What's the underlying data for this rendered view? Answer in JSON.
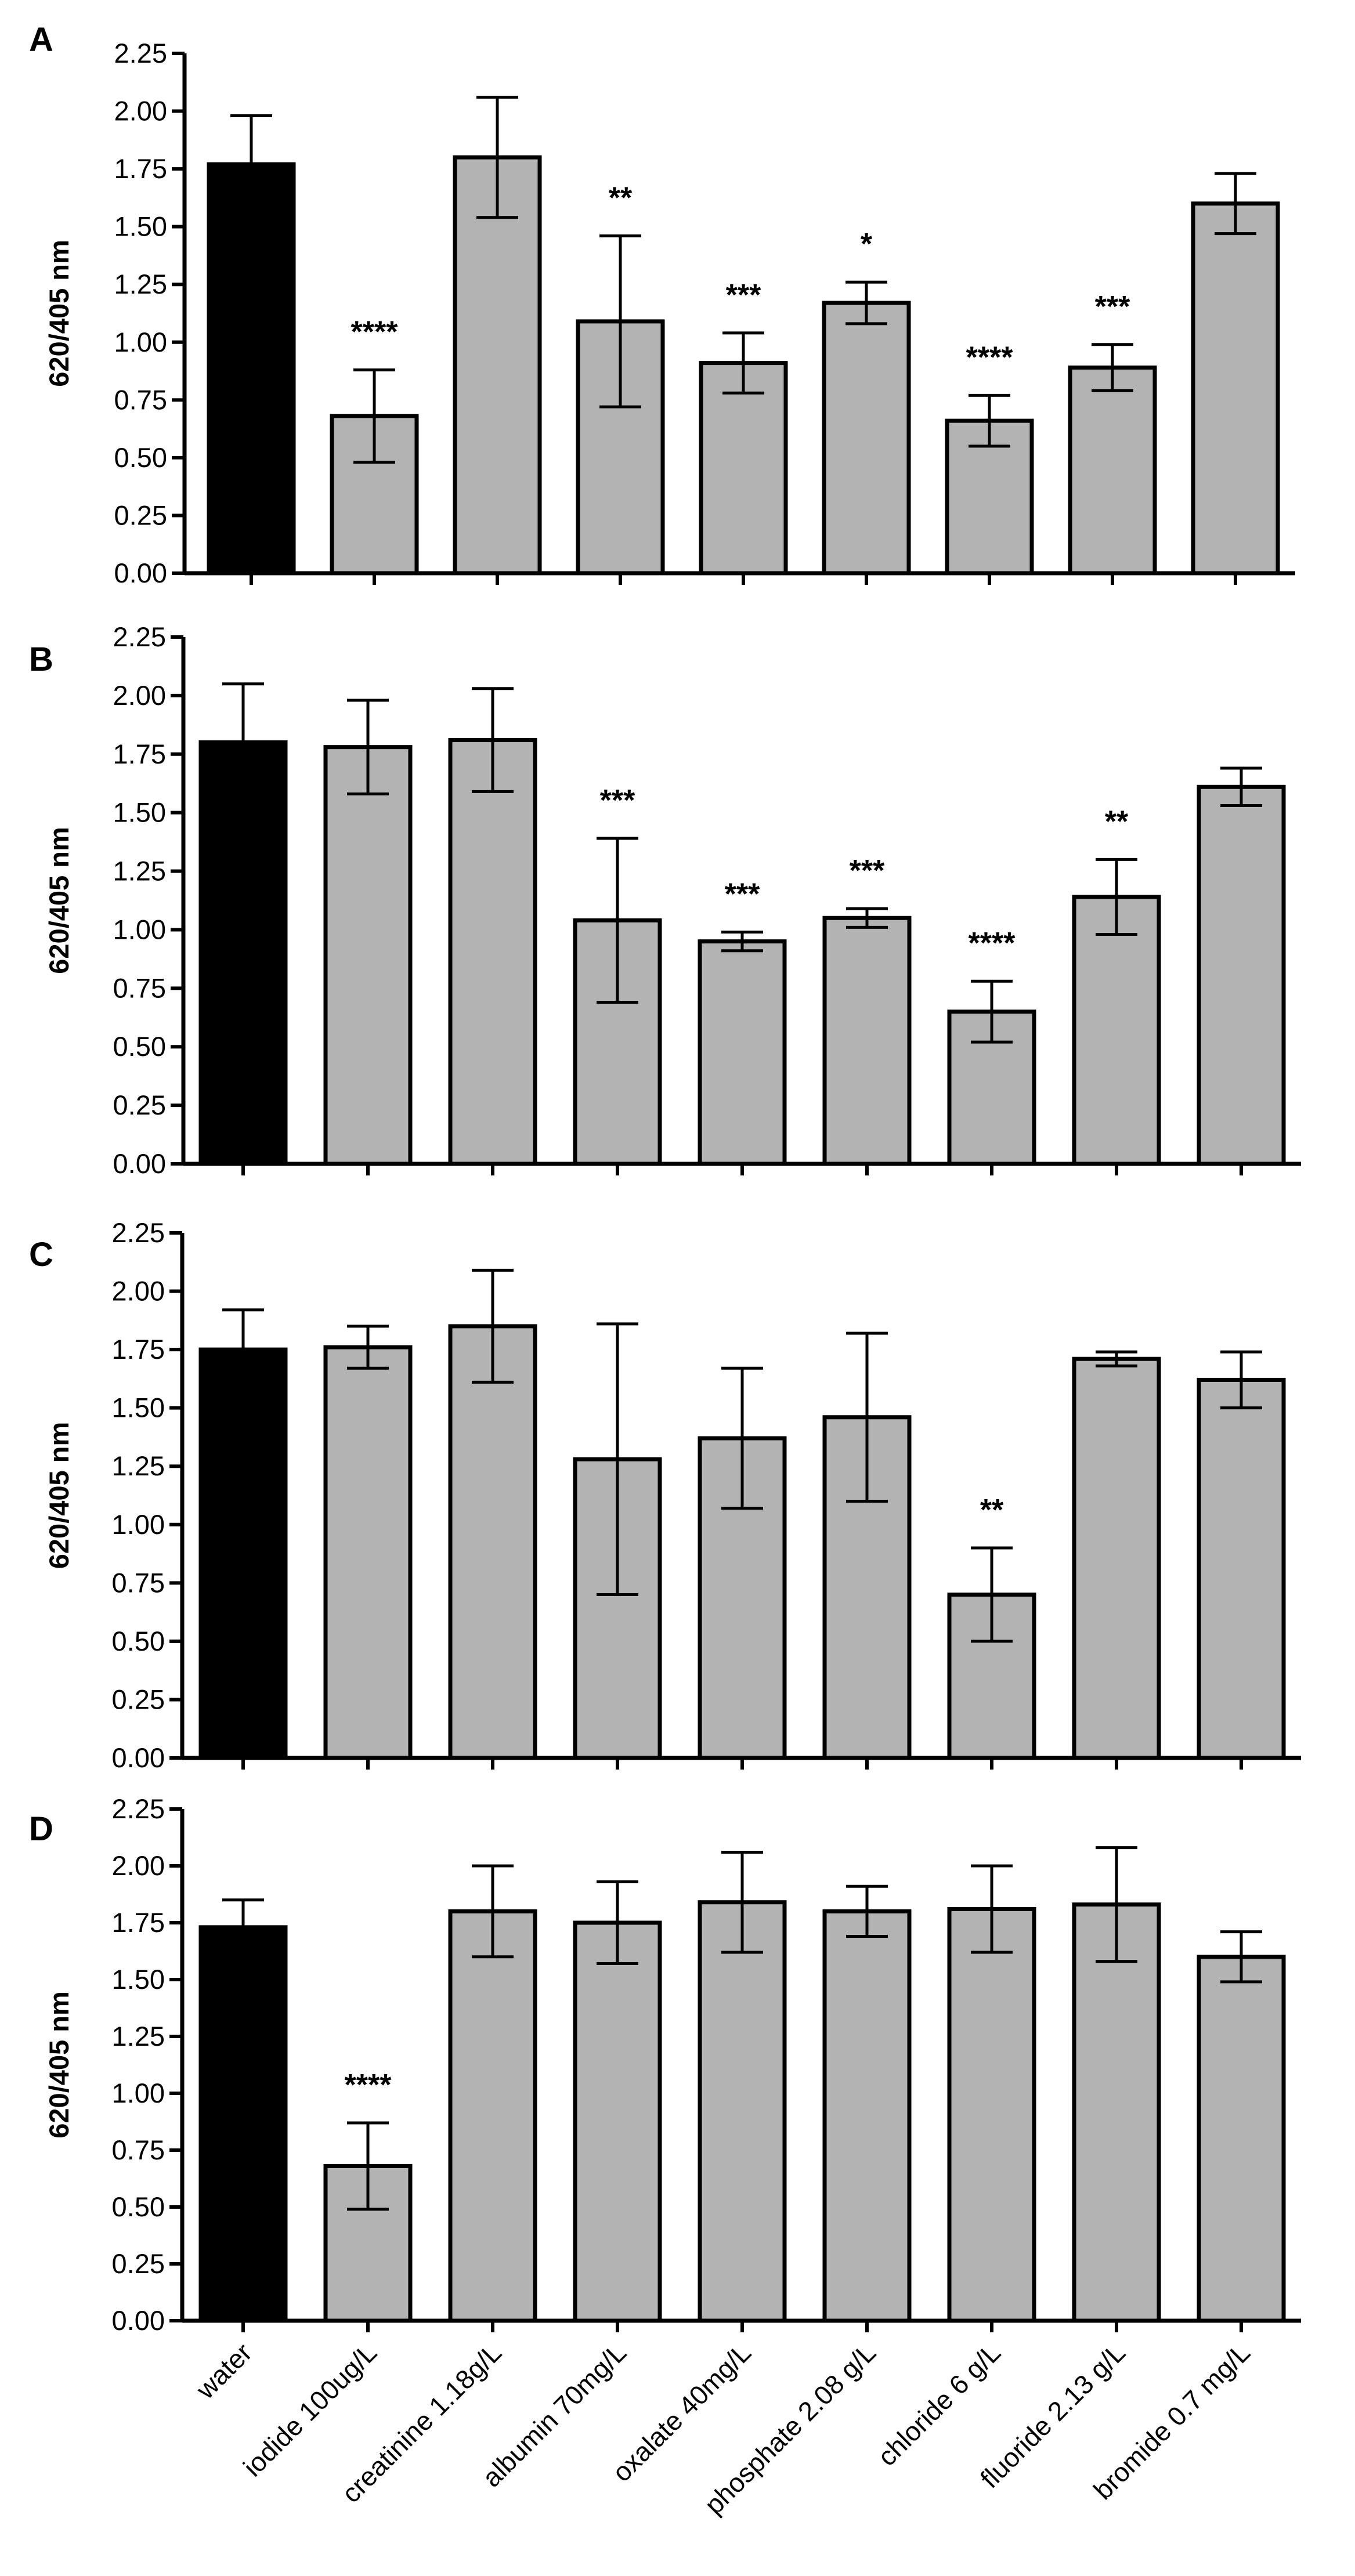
{
  "chart_data": [
    {
      "type": "bar",
      "panel": "A",
      "ylabel": "620/405 nm",
      "ylim": [
        0,
        2.25
      ],
      "yticks": [
        "0.00",
        "0.25",
        "0.50",
        "0.75",
        "1.00",
        "1.25",
        "1.50",
        "1.75",
        "2.00",
        "2.25"
      ],
      "categories": [
        "water",
        "iodide 100ug/L",
        "creatinine 1.18g/L",
        "albumin 70mg/L",
        "oxalate 40mg/L",
        "phosphate 2.08 g/L",
        "chloride 6 g/L",
        "fluoride 2.13 g/L",
        "bromide 0.7 mg/L"
      ],
      "values": [
        1.77,
        0.68,
        1.8,
        1.09,
        0.91,
        1.17,
        0.66,
        0.89,
        1.6
      ],
      "errors": [
        0.21,
        0.2,
        0.26,
        0.37,
        0.13,
        0.09,
        0.11,
        0.1,
        0.13
      ],
      "significance": [
        "",
        "****",
        "",
        "**",
        "***",
        "*",
        "****",
        "***",
        ""
      ]
    },
    {
      "type": "bar",
      "panel": "B",
      "ylabel": "620/405 nm",
      "ylim": [
        0,
        2.25
      ],
      "yticks": [
        "0.00",
        "0.25",
        "0.50",
        "0.75",
        "1.00",
        "1.25",
        "1.50",
        "1.75",
        "2.00",
        "2.25"
      ],
      "categories": [
        "water",
        "iodide 100ug/L",
        "creatinine 1.18g/L",
        "albumin 70mg/L",
        "oxalate 40mg/L",
        "phosphate 2.08 g/L",
        "chloride 6 g/L",
        "fluoride 2.13 g/L",
        "bromide 0.7 mg/L"
      ],
      "values": [
        1.8,
        1.78,
        1.81,
        1.04,
        0.95,
        1.05,
        0.65,
        1.14,
        1.61
      ],
      "errors": [
        0.25,
        0.2,
        0.22,
        0.35,
        0.04,
        0.04,
        0.13,
        0.16,
        0.08
      ],
      "significance": [
        "",
        "",
        "",
        "***",
        "***",
        "***",
        "****",
        "**",
        ""
      ]
    },
    {
      "type": "bar",
      "panel": "C",
      "ylabel": "620/405 nm",
      "ylim": [
        0,
        2.25
      ],
      "yticks": [
        "0.00",
        "0.25",
        "0.50",
        "0.75",
        "1.00",
        "1.25",
        "1.50",
        "1.75",
        "2.00",
        "2.25"
      ],
      "categories": [
        "water",
        "iodide 100ug/L",
        "creatinine 1.18g/L",
        "albumin 70mg/L",
        "oxalate 40mg/L",
        "phosphate 2.08 g/L",
        "chloride 6 g/L",
        "fluoride 2.13 g/L",
        "bromide 0.7 mg/L"
      ],
      "values": [
        1.75,
        1.76,
        1.85,
        1.28,
        1.37,
        1.46,
        0.7,
        1.71,
        1.62
      ],
      "errors": [
        0.17,
        0.09,
        0.24,
        0.58,
        0.3,
        0.36,
        0.2,
        0.03,
        0.12
      ],
      "significance": [
        "",
        "",
        "",
        "",
        "",
        "",
        "**",
        "",
        ""
      ]
    },
    {
      "type": "bar",
      "panel": "D",
      "ylabel": "620/405 nm",
      "ylim": [
        0,
        2.25
      ],
      "yticks": [
        "0.00",
        "0.25",
        "0.50",
        "0.75",
        "1.00",
        "1.25",
        "1.50",
        "1.75",
        "2.00",
        "2.25"
      ],
      "categories": [
        "water",
        "iodide 100ug/L",
        "creatinine 1.18g/L",
        "albumin 70mg/L",
        "oxalate 40mg/L",
        "phosphate 2.08 g/L",
        "chloride 6 g/L",
        "fluoride 2.13 g/L",
        "bromide 0.7 mg/L"
      ],
      "values": [
        1.73,
        0.68,
        1.8,
        1.75,
        1.84,
        1.8,
        1.81,
        1.83,
        1.6
      ],
      "errors": [
        0.12,
        0.19,
        0.2,
        0.18,
        0.22,
        0.11,
        0.19,
        0.25,
        0.11
      ],
      "significance": [
        "",
        "****",
        "",
        "",
        "",
        "",
        "",
        "",
        ""
      ]
    }
  ],
  "colors": {
    "control_bar": "#000000",
    "treatment_bar": "#b3b3b3",
    "axis": "#000000"
  }
}
